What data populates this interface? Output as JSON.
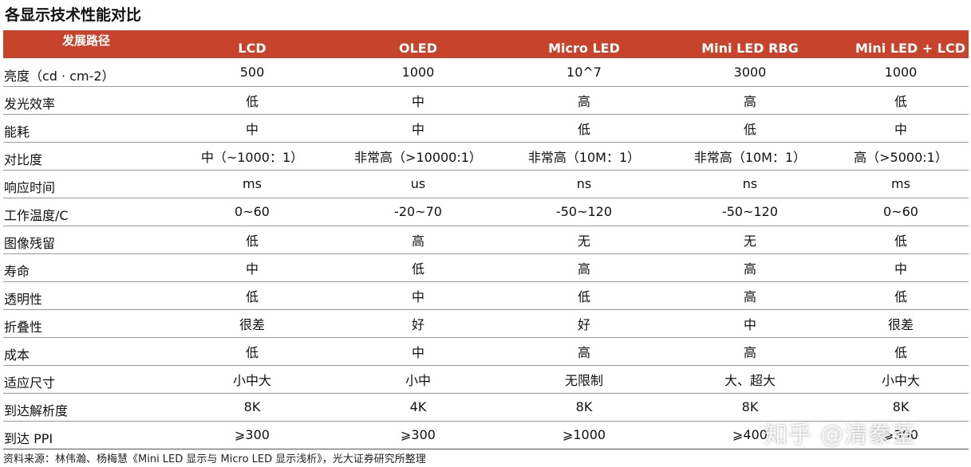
{
  "title": "各显示技术性能对比",
  "columns": [
    "发展路径",
    "LCD",
    "OLED",
    "Micro LED",
    "Mini LED RBG",
    "Mini LED + LCD"
  ],
  "rows": [
    [
      "亮度（cd · cm-2）",
      "500",
      "1000",
      "10^7",
      "3000",
      "1000"
    ],
    [
      "发光效率",
      "低",
      "中",
      "高",
      "高",
      "低"
    ],
    [
      "能耗",
      "中",
      "中",
      "低",
      "低",
      "中"
    ],
    [
      "对比度",
      "中（~1000：1）",
      "非常高（>10000:1）",
      "非常高（10M：1）",
      "非常高（10M：1）",
      "高（>5000:1）"
    ],
    [
      "响应时间",
      "ms",
      "us",
      "ns",
      "ns",
      "ms"
    ],
    [
      "工作温度/C",
      "0~60",
      "-20~70",
      "-50~120",
      "-50~120",
      "0~60"
    ],
    [
      "图像残留",
      "低",
      "高",
      "无",
      "无",
      "低"
    ],
    [
      "寿命",
      "中",
      "低",
      "高",
      "高",
      "中"
    ],
    [
      "透明性",
      "低",
      "中",
      "低",
      "高",
      "低"
    ],
    [
      "折叠性",
      "很差",
      "好",
      "好",
      "中",
      "很差"
    ],
    [
      "成本",
      "低",
      "中",
      "高",
      "高",
      "低"
    ],
    [
      "适应尺寸",
      "小中大",
      "小中",
      "无限制",
      "大、超大",
      "小中大"
    ],
    [
      "到达解析度",
      "8K",
      "4K",
      "8K",
      "8K",
      "8K"
    ],
    [
      "到达 PPI",
      "⩾300",
      "⩾300",
      "⩾1000",
      "⩾400",
      "⩾300"
    ]
  ],
  "source": "资料来源：林伟瀚、杨梅慧《Mini LED 显示与 Micro LED 显示浅析》，光大证券研究所整理",
  "watermark": "知乎 @清豢荃",
  "colors": {
    "header_bg": "#c8432b",
    "header_text": "#ffffff"
  }
}
